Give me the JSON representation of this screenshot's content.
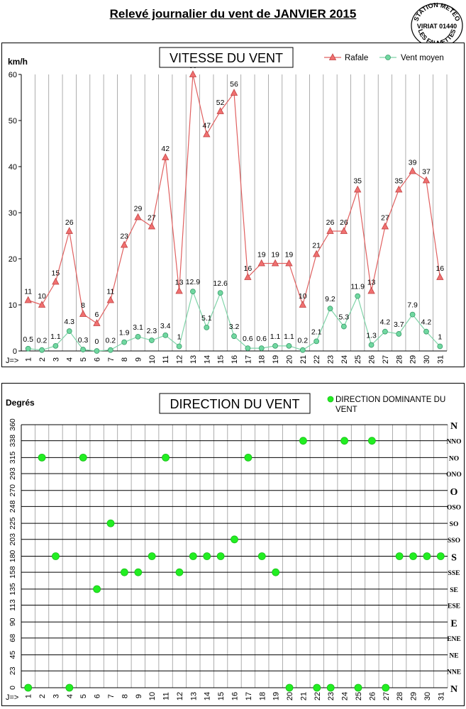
{
  "page": {
    "title": "Relevé journalier du vent de JANVIER 2015"
  },
  "stamp": {
    "top": "STATION METEO",
    "middle": "VIRIAT 01440",
    "bottom": "LES FAUVETTES"
  },
  "colors": {
    "gust": "#e06060",
    "gust_marker": "#f07070",
    "mean": "#7fd4a8",
    "mean_marker": "#70d8a0",
    "direction_marker": "#22ee22",
    "grid": "#999999"
  },
  "chart_data": [
    {
      "type": "line",
      "title": "VITESSE DU VENT",
      "ylabel": "km/h",
      "xlabel": "J=>",
      "ylim": [
        0,
        60
      ],
      "yticks": [
        0,
        10,
        20,
        30,
        40,
        50,
        60
      ],
      "grid": "vertical",
      "legend_position": "top-right",
      "x": [
        1,
        2,
        3,
        4,
        5,
        6,
        7,
        8,
        9,
        10,
        11,
        12,
        13,
        14,
        15,
        16,
        17,
        18,
        19,
        20,
        21,
        22,
        23,
        24,
        25,
        26,
        27,
        28,
        29,
        30,
        31
      ],
      "series": [
        {
          "name": "Rafale",
          "marker": "triangle",
          "values": [
            11,
            10,
            15,
            26,
            8,
            6,
            11,
            23,
            29,
            27,
            42,
            13,
            60,
            47,
            52,
            56,
            16,
            19,
            19,
            19,
            10,
            21,
            26,
            26,
            35,
            13,
            27,
            35,
            39,
            37,
            16
          ],
          "labels": [
            "11",
            "10",
            "15",
            "26",
            "8",
            "6",
            "11",
            "23",
            "29",
            "27",
            "42",
            "13",
            "60",
            "47",
            "52",
            "56",
            "16",
            "19",
            "19",
            "19",
            "10",
            "21",
            "26",
            "26",
            "35",
            "13",
            "27",
            "35",
            "39",
            "37",
            "16"
          ]
        },
        {
          "name": "Vent moyen",
          "marker": "circle",
          "values": [
            0.5,
            0.2,
            1.1,
            4.3,
            0.3,
            0,
            0.2,
            1.9,
            3.1,
            2.3,
            3.4,
            1,
            12.9,
            5.1,
            12.6,
            3.2,
            0.6,
            0.6,
            1.1,
            1.1,
            0.2,
            2.1,
            9.2,
            5.3,
            11.9,
            1.3,
            4.2,
            3.7,
            7.9,
            4.2,
            1
          ],
          "labels": [
            "0.5",
            "0.2",
            "1.1",
            "4.3",
            "0.3",
            "0",
            "0.2",
            "1.9",
            "3.1",
            "2.3",
            "3.4",
            "1",
            "12.9",
            "5.1",
            "12.6",
            "3.2",
            "0.6",
            "0.6",
            "1.1",
            "1.1",
            "0.2",
            "2.1",
            "9.2",
            "5.3",
            "11.9",
            "1.3",
            "4.2",
            "3.7",
            "7.9",
            "4.2",
            "1"
          ]
        }
      ]
    },
    {
      "type": "scatter",
      "title": "DIRECTION DU VENT",
      "ylabel": "Degrés",
      "xlabel": "J=>",
      "ylim": [
        0,
        360
      ],
      "yticks": [
        0,
        23,
        45,
        68,
        90,
        113,
        135,
        158,
        180,
        203,
        225,
        248,
        270,
        293,
        315,
        338,
        360
      ],
      "compass_labels": [
        "N",
        "NNE",
        "NE",
        "ENE",
        "E",
        "ESE",
        "SE",
        "SSE",
        "S",
        "SSO",
        "SO",
        "OSO",
        "O",
        "ONO",
        "NO",
        "NNO",
        "N"
      ],
      "grid": "both",
      "legend_position": "top-right",
      "x": [
        1,
        2,
        3,
        4,
        5,
        6,
        7,
        8,
        9,
        10,
        11,
        12,
        13,
        14,
        15,
        16,
        17,
        18,
        19,
        20,
        21,
        22,
        23,
        24,
        25,
        26,
        27,
        28,
        29,
        30,
        31
      ],
      "series": [
        {
          "name": "DIRECTION DOMINANTE DU VENT",
          "marker": "circle",
          "values": [
            0,
            315,
            180,
            0,
            315,
            135,
            225,
            158,
            158,
            180,
            315,
            158,
            180,
            180,
            180,
            203,
            315,
            180,
            158,
            0,
            338,
            0,
            0,
            338,
            0,
            338,
            0,
            180,
            180,
            180,
            180
          ]
        }
      ]
    }
  ]
}
